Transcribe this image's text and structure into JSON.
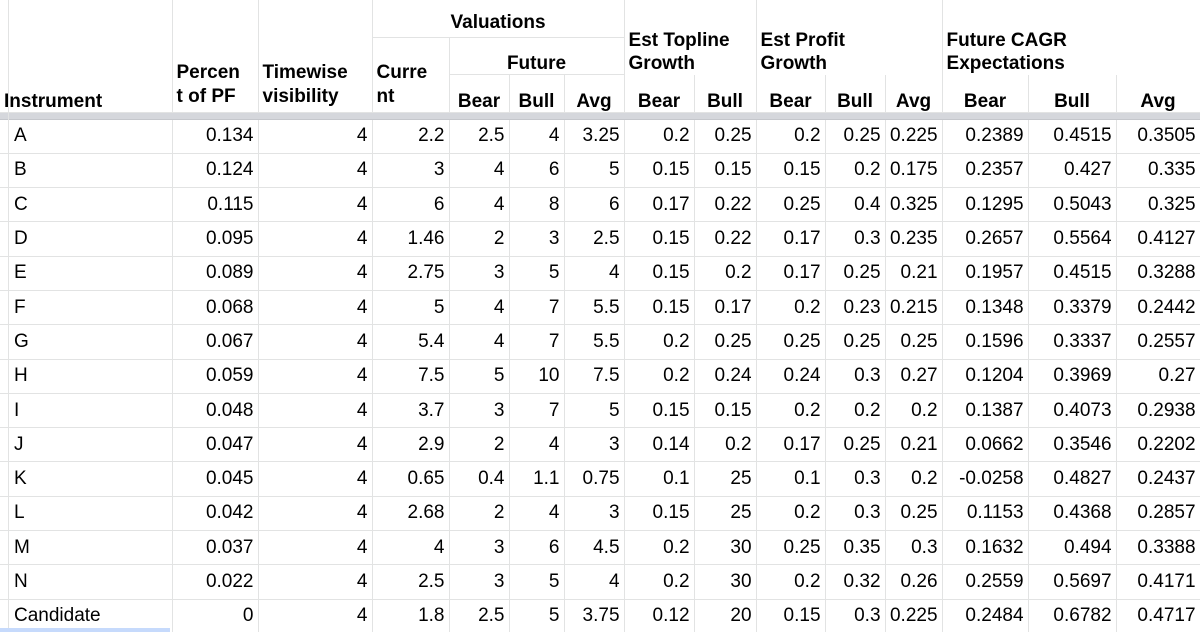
{
  "headers": {
    "instrument": "Instrument",
    "percent_pf_line1": "Percen",
    "percent_pf_line2": "t of PF",
    "timewise_line1": "Timewise",
    "timewise_line2": "visibility",
    "valuations": "Valuations",
    "current_line1": "Curre",
    "current_line2": "nt",
    "future": "Future",
    "topline_line1": "Est Topline",
    "topline_line2": "Growth",
    "profit_line1": "Est Profit",
    "profit_line2": "Growth",
    "cagr_line1": "Future CAGR",
    "cagr_line2": "Expectations",
    "bear": "Bear",
    "bull": "Bull",
    "avg": "Avg"
  },
  "rows": [
    [
      "A",
      "0.134",
      "4",
      "2.2",
      "2.5",
      "4",
      "3.25",
      "0.2",
      "0.25",
      "0.2",
      "0.25",
      "0.225",
      "0.2389",
      "0.4515",
      "0.3505"
    ],
    [
      "B",
      "0.124",
      "4",
      "3",
      "4",
      "6",
      "5",
      "0.15",
      "0.15",
      "0.15",
      "0.2",
      "0.175",
      "0.2357",
      "0.427",
      "0.335"
    ],
    [
      "C",
      "0.115",
      "4",
      "6",
      "4",
      "8",
      "6",
      "0.17",
      "0.22",
      "0.25",
      "0.4",
      "0.325",
      "0.1295",
      "0.5043",
      "0.325"
    ],
    [
      "D",
      "0.095",
      "4",
      "1.46",
      "2",
      "3",
      "2.5",
      "0.15",
      "0.22",
      "0.17",
      "0.3",
      "0.235",
      "0.2657",
      "0.5564",
      "0.4127"
    ],
    [
      "E",
      "0.089",
      "4",
      "2.75",
      "3",
      "5",
      "4",
      "0.15",
      "0.2",
      "0.17",
      "0.25",
      "0.21",
      "0.1957",
      "0.4515",
      "0.3288"
    ],
    [
      "F",
      "0.068",
      "4",
      "5",
      "4",
      "7",
      "5.5",
      "0.15",
      "0.17",
      "0.2",
      "0.23",
      "0.215",
      "0.1348",
      "0.3379",
      "0.2442"
    ],
    [
      "G",
      "0.067",
      "4",
      "5.4",
      "4",
      "7",
      "5.5",
      "0.2",
      "0.25",
      "0.25",
      "0.25",
      "0.25",
      "0.1596",
      "0.3337",
      "0.2557"
    ],
    [
      "H",
      "0.059",
      "4",
      "7.5",
      "5",
      "10",
      "7.5",
      "0.2",
      "0.24",
      "0.24",
      "0.3",
      "0.27",
      "0.1204",
      "0.3969",
      "0.27"
    ],
    [
      "I",
      "0.048",
      "4",
      "3.7",
      "3",
      "7",
      "5",
      "0.15",
      "0.15",
      "0.2",
      "0.2",
      "0.2",
      "0.1387",
      "0.4073",
      "0.2938"
    ],
    [
      "J",
      "0.047",
      "4",
      "2.9",
      "2",
      "4",
      "3",
      "0.14",
      "0.2",
      "0.17",
      "0.25",
      "0.21",
      "0.0662",
      "0.3546",
      "0.2202"
    ],
    [
      "K",
      "0.045",
      "4",
      "0.65",
      "0.4",
      "1.1",
      "0.75",
      "0.1",
      "25",
      "0.1",
      "0.3",
      "0.2",
      "-0.0258",
      "0.4827",
      "0.2437"
    ],
    [
      "L",
      "0.042",
      "4",
      "2.68",
      "2",
      "4",
      "3",
      "0.15",
      "25",
      "0.2",
      "0.3",
      "0.25",
      "0.1153",
      "0.4368",
      "0.2857"
    ],
    [
      "M",
      "0.037",
      "4",
      "4",
      "3",
      "6",
      "4.5",
      "0.2",
      "30",
      "0.25",
      "0.35",
      "0.3",
      "0.1632",
      "0.494",
      "0.3388"
    ],
    [
      "N",
      "0.022",
      "4",
      "2.5",
      "3",
      "5",
      "4",
      "0.2",
      "30",
      "0.2",
      "0.32",
      "0.26",
      "0.2559",
      "0.5697",
      "0.4171"
    ],
    [
      "Candidate",
      "0",
      "4",
      "1.8",
      "2.5",
      "5",
      "3.75",
      "0.12",
      "20",
      "0.15",
      "0.3",
      "0.225",
      "0.2484",
      "0.6782",
      "0.4717"
    ]
  ]
}
